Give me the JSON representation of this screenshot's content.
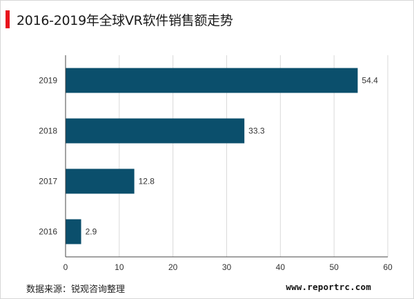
{
  "title": "2016-2019年全球VR软件销售额走势",
  "source": "数据来源：锐观咨询整理",
  "website": "www.reportrc.com",
  "colors": {
    "accent": "#e8131c",
    "bar": "#0b4f6c",
    "axis": "#444444",
    "grid": "#d9d9d9"
  },
  "chart_data": {
    "type": "bar",
    "orientation": "horizontal",
    "title": "2016-2019年全球VR软件销售额走势",
    "categories": [
      "2019",
      "2018",
      "2017",
      "2016"
    ],
    "values": [
      54.4,
      33.3,
      12.8,
      2.9
    ],
    "data_labels": [
      "54.4",
      "33.3",
      "12.8",
      "2.9"
    ],
    "xlim": [
      0,
      60
    ],
    "xticks": [
      0,
      10,
      20,
      30,
      40,
      50,
      60
    ],
    "grid": "vertical",
    "legend": "none"
  }
}
